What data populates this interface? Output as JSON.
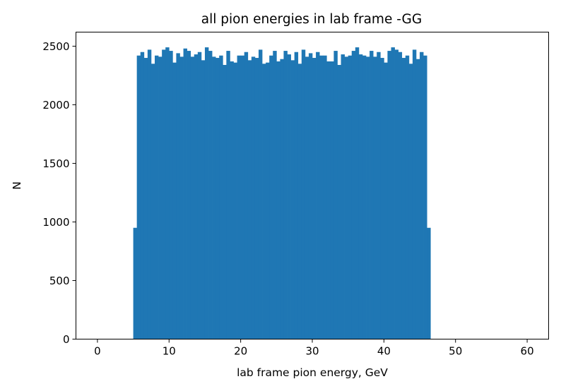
{
  "chart_data": {
    "type": "bar",
    "title": "all pion energies in lab frame -GG",
    "xlabel": "lab frame pion energy, GeV",
    "ylabel": "N",
    "xlim": [
      -3,
      63
    ],
    "ylim": [
      0,
      2620
    ],
    "xticks": [
      0,
      10,
      20,
      30,
      40,
      50,
      60
    ],
    "yticks": [
      0,
      500,
      1000,
      1500,
      2000,
      2500
    ],
    "grid": false,
    "bar_color": "#1f77b4",
    "bin_edges_start": 5.0,
    "bin_width": 0.5,
    "values": [
      950,
      2420,
      2450,
      2400,
      2470,
      2350,
      2420,
      2410,
      2470,
      2490,
      2460,
      2360,
      2440,
      2410,
      2480,
      2460,
      2410,
      2430,
      2450,
      2380,
      2490,
      2460,
      2410,
      2400,
      2420,
      2340,
      2460,
      2370,
      2360,
      2420,
      2420,
      2450,
      2380,
      2410,
      2400,
      2470,
      2350,
      2360,
      2420,
      2460,
      2370,
      2390,
      2460,
      2430,
      2380,
      2450,
      2350,
      2470,
      2410,
      2440,
      2400,
      2450,
      2420,
      2420,
      2370,
      2370,
      2460,
      2340,
      2430,
      2410,
      2420,
      2460,
      2490,
      2430,
      2420,
      2410,
      2460,
      2410,
      2450,
      2400,
      2360,
      2460,
      2490,
      2470,
      2450,
      2400,
      2420,
      2350,
      2470,
      2390,
      2450,
      2420,
      950
    ]
  }
}
